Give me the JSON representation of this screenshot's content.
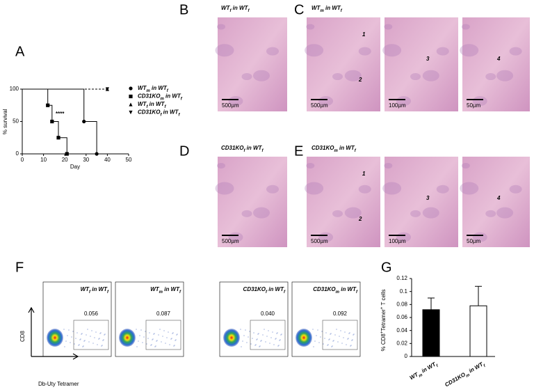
{
  "panels": {
    "labels": [
      "A",
      "B",
      "C",
      "D",
      "E",
      "F",
      "G"
    ]
  },
  "chart_data": [
    {
      "type": "line",
      "x_label": "Day",
      "y_label": "% survival",
      "xlim": [
        0,
        50
      ],
      "xticks": [
        0,
        10,
        20,
        30,
        40,
        50
      ],
      "ylim": [
        0,
        100
      ],
      "yticks": [
        0,
        50,
        100
      ],
      "annotation": "****",
      "drawstyle": "steps-post",
      "series": [
        {
          "name": [
            "WT",
            "m",
            " in WT",
            "f"
          ],
          "color": "#000000",
          "marker": "circle",
          "linestyle": "solid",
          "x": [
            0,
            29,
            35
          ],
          "values": [
            100,
            50,
            0
          ]
        },
        {
          "name": [
            "CD31KO",
            "m",
            " in WT",
            "f"
          ],
          "color": "#000000",
          "marker": "square",
          "linestyle": "solid",
          "x": [
            0,
            12,
            14,
            17,
            21
          ],
          "values": [
            100,
            75,
            50,
            25,
            0
          ]
        },
        {
          "name": [
            "WT",
            "f",
            " in WT",
            "f"
          ],
          "color": "#000000",
          "marker": "triangle-up",
          "linestyle": "dashed",
          "x": [
            0,
            40
          ],
          "values": [
            100,
            100
          ]
        },
        {
          "name": [
            "CD31KO",
            "f",
            " in WT",
            "f"
          ],
          "color": "#000000",
          "marker": "triangle-down",
          "linestyle": "dashed",
          "x": [
            0,
            40
          ],
          "values": [
            100,
            100
          ]
        }
      ]
    },
    {
      "type": "bar",
      "y_label": [
        "% CD8",
        "+",
        "Tetramer",
        "+",
        " T cells"
      ],
      "categories": [
        [
          "WT",
          "m",
          " in WT",
          "f"
        ],
        [
          "CD31KO",
          "m",
          " in WT",
          "f"
        ]
      ],
      "values": [
        0.072,
        0.078
      ],
      "errors": [
        0.018,
        0.03
      ],
      "colors": [
        "#000000",
        "#ffffff"
      ],
      "ylim": [
        0,
        0.12
      ],
      "yticks": [
        0,
        0.02,
        0.04,
        0.06,
        0.08,
        0.1,
        0.12
      ]
    }
  ],
  "histology": [
    {
      "title": [
        "WT",
        "f",
        " in WT",
        "f"
      ],
      "images": [
        {
          "scale": "500µm"
        }
      ]
    },
    {
      "title": [
        "WT",
        "m",
        " in WT",
        "f"
      ],
      "images": [
        {
          "scale": "500µm",
          "marks": [
            "1",
            "2"
          ]
        },
        {
          "scale": "100µm",
          "marks": [
            "3"
          ]
        },
        {
          "scale": "50µm",
          "marks": [
            "4"
          ]
        }
      ]
    },
    {
      "title": [
        "CD31KO",
        "f",
        " in WT",
        "f"
      ],
      "images": [
        {
          "scale": "500µm"
        }
      ]
    },
    {
      "title": [
        "CD31KO",
        "m",
        " in WT",
        "f"
      ],
      "images": [
        {
          "scale": "500µm",
          "marks": [
            "1",
            "2"
          ]
        },
        {
          "scale": "100µm",
          "marks": [
            "3"
          ]
        },
        {
          "scale": "50µm",
          "marks": [
            "4"
          ]
        }
      ]
    }
  ],
  "flow": {
    "y_label": "CD8",
    "x_label": "Db-Uty Tetramer",
    "plots": [
      {
        "title": [
          "WT",
          "f",
          " in WT",
          "f"
        ],
        "gate": "0.056"
      },
      {
        "title": [
          "WT",
          "m",
          " in WT",
          "f"
        ],
        "gate": "0.087"
      },
      {
        "title": [
          "CD31KO",
          "f",
          " in WT",
          "f"
        ],
        "gate": "0.040"
      },
      {
        "title": [
          "CD31KO",
          "m",
          " in WT",
          "f"
        ],
        "gate": "0.092"
      }
    ]
  }
}
